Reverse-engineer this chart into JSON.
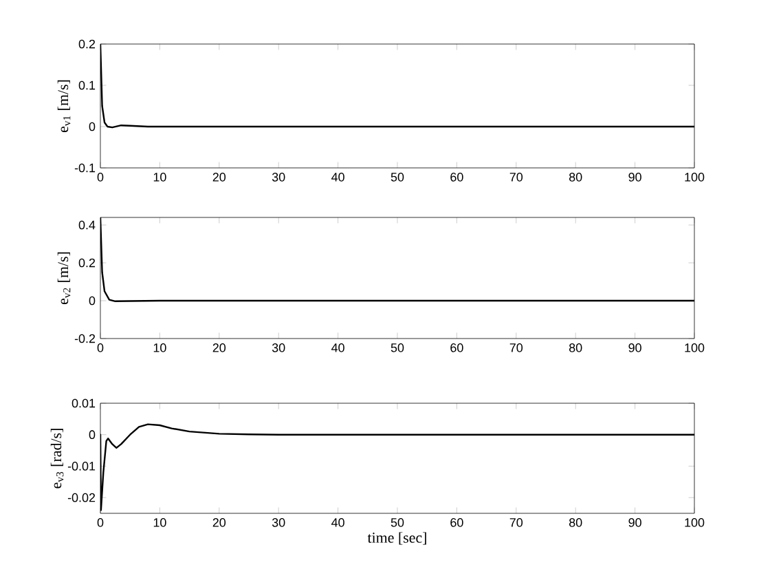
{
  "chart_data": [
    {
      "type": "line",
      "ylabel": "e$_{v1}$ [m/s]",
      "xlim": [
        0,
        100
      ],
      "ylim": [
        -0.1,
        0.2
      ],
      "xticks": [
        0,
        10,
        20,
        30,
        40,
        50,
        60,
        70,
        80,
        90,
        100
      ],
      "yticks": [
        -0.1,
        0,
        0.1,
        0.2
      ],
      "line_style": "solid",
      "series": [
        {
          "color": "#000000",
          "x": [
            0,
            0.3,
            0.7,
            1.2,
            2,
            3.5,
            5,
            8,
            20,
            100
          ],
          "values": [
            0.2,
            0.05,
            0.01,
            0,
            -0.002,
            0.003,
            0.002,
            0,
            0,
            0
          ]
        }
      ]
    },
    {
      "type": "line",
      "ylabel": "e$_{v2}$ [m/s]",
      "xlim": [
        0,
        100
      ],
      "ylim": [
        -0.2,
        0.44
      ],
      "xticks": [
        0,
        10,
        20,
        30,
        40,
        50,
        60,
        70,
        80,
        90,
        100
      ],
      "yticks": [
        -0.2,
        0,
        0.2,
        0.4
      ],
      "line_style": "solid",
      "series": [
        {
          "color": "#000000",
          "x": [
            0,
            0.3,
            0.7,
            1.5,
            2.5,
            5,
            10,
            20,
            100
          ],
          "values": [
            0.44,
            0.15,
            0.05,
            0.005,
            -0.003,
            -0.002,
            0,
            0,
            0
          ]
        }
      ]
    },
    {
      "type": "line",
      "xlabel": "time [sec]",
      "ylabel": "e$_{v3}$ [rad/s]",
      "xlim": [
        0,
        100
      ],
      "ylim": [
        -0.025,
        0.01
      ],
      "xticks": [
        0,
        10,
        20,
        30,
        40,
        50,
        60,
        70,
        80,
        90,
        100
      ],
      "yticks": [
        -0.02,
        -0.01,
        0,
        0.01
      ],
      "line_style": "solid",
      "series": [
        {
          "color": "#000000",
          "x": [
            0,
            0.1,
            0.5,
            1,
            1.3,
            2,
            2.7,
            3.5,
            5,
            6.5,
            8,
            10,
            12,
            15,
            20,
            25,
            30,
            100
          ],
          "values": [
            0,
            -0.024,
            -0.012,
            -0.002,
            -0.0012,
            -0.003,
            -0.0042,
            -0.003,
            0,
            0.0025,
            0.0033,
            0.003,
            0.002,
            0.001,
            0.0003,
            0.0001,
            0,
            0
          ]
        }
      ]
    }
  ]
}
